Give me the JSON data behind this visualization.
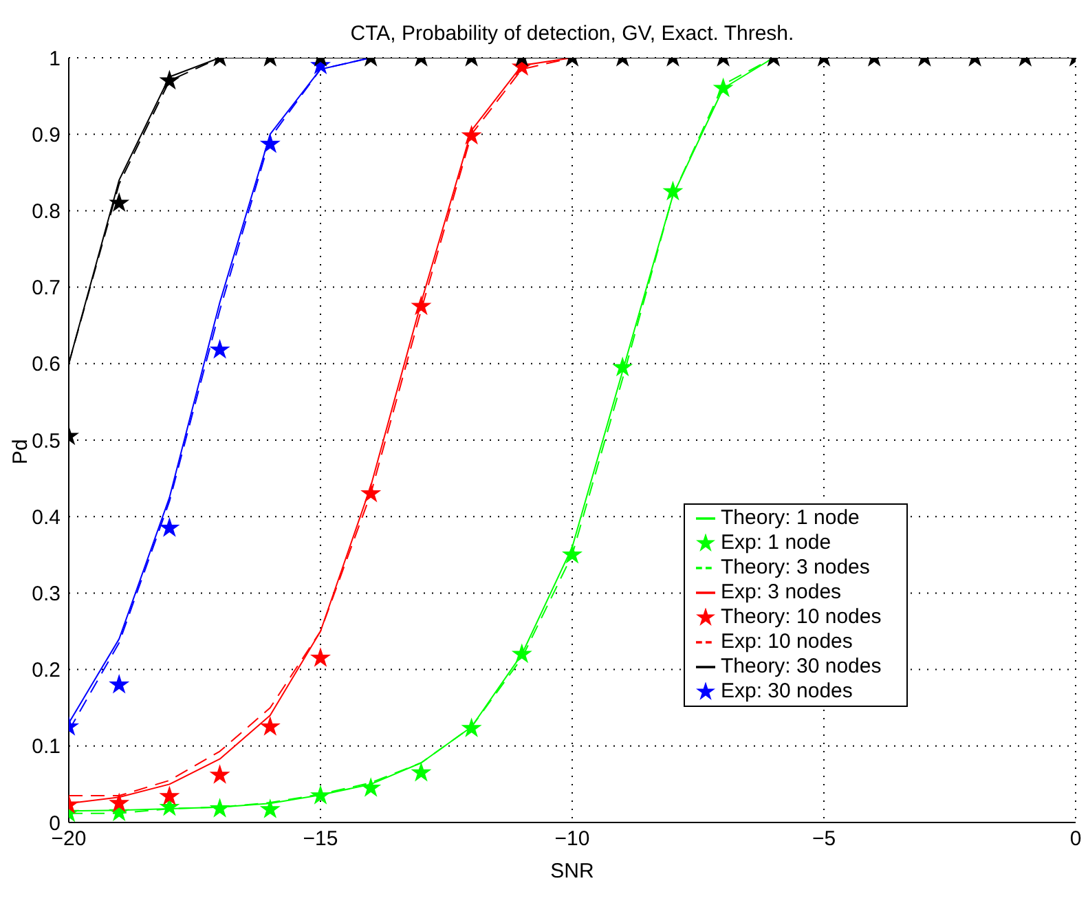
{
  "chart_data": {
    "type": "line",
    "title": "CTA, Probability of detection, GV, Exact. Thresh.",
    "xlabel": "SNR",
    "ylabel": "Pd",
    "x": [
      -20,
      -19,
      -18,
      -17,
      -16,
      -15,
      -14,
      -13,
      -12,
      -11,
      -10,
      -9,
      -8,
      -7,
      -6,
      -5,
      -4,
      -3,
      -2,
      -1,
      0
    ],
    "xlim": [
      -20,
      0
    ],
    "xticks": [
      {
        "value": -20,
        "label": "−20"
      },
      {
        "value": -15,
        "label": "−15"
      },
      {
        "value": -10,
        "label": "−10"
      },
      {
        "value": -5,
        "label": "−5"
      },
      0
    ],
    "ylim": [
      0,
      1
    ],
    "yticks": [
      0,
      0.1,
      0.2,
      0.3,
      0.4,
      0.5,
      0.6,
      0.7,
      0.8,
      0.9,
      1
    ],
    "grid": true,
    "legend": "bottom right",
    "series": [
      {
        "name": "Theory: 1 node",
        "line_style": "solid",
        "color": "#00ff00",
        "values": [
          0.015,
          0.016,
          0.018,
          0.02,
          0.025,
          0.036,
          0.05,
          0.078,
          0.125,
          0.22,
          0.36,
          0.59,
          0.82,
          0.96,
          1,
          null,
          null,
          null,
          null,
          null,
          null
        ]
      },
      {
        "name": "Exp: 1 node",
        "type": "scatter",
        "marker": "star",
        "color": "#00ff00",
        "values": [
          0.012,
          0.013,
          0.02,
          0.018,
          0.017,
          0.035,
          0.045,
          0.065,
          0.123,
          0.22,
          0.35,
          0.595,
          0.825,
          0.96,
          null,
          null,
          null,
          null,
          null,
          null,
          null
        ]
      },
      {
        "name": "Theory: 3 nodes",
        "line_style": "dashed",
        "color": "#00ff00",
        "values": [
          0.012,
          0.012,
          0.018,
          0.02,
          0.026,
          0.037,
          0.052,
          0.078,
          0.125,
          0.215,
          0.35,
          0.58,
          0.82,
          0.965,
          1,
          null,
          null,
          null,
          null,
          null,
          null
        ]
      },
      {
        "name": "Exp: 3 nodes",
        "line_style": "solid",
        "color": "#ff0000",
        "values": [
          0.025,
          0.033,
          0.05,
          0.083,
          0.14,
          0.25,
          0.44,
          0.68,
          0.905,
          0.99,
          1,
          null,
          null,
          null,
          null,
          null,
          null,
          null,
          null,
          null,
          null
        ]
      },
      {
        "name": "Theory: 10 nodes",
        "type": "scatter",
        "marker": "star",
        "color": "#ff0000",
        "values": [
          0.023,
          0.025,
          0.034,
          0.062,
          0.125,
          0.215,
          0.43,
          0.675,
          0.898,
          0.988,
          null,
          null,
          null,
          null,
          null,
          null,
          null,
          null,
          null,
          null,
          null
        ]
      },
      {
        "name": "Exp: 10 nodes",
        "line_style": "dashed",
        "color": "#ff0000",
        "values": [
          0.035,
          0.035,
          0.055,
          0.093,
          0.15,
          0.25,
          0.43,
          0.67,
          0.9,
          0.985,
          1,
          null,
          null,
          null,
          null,
          null,
          null,
          null,
          null,
          null,
          null
        ]
      },
      {
        "name": "Theory: 30 nodes",
        "line_style": "solid",
        "color": "#000000",
        "values": [
          0.6,
          0.84,
          0.975,
          1,
          1,
          1,
          1,
          1,
          1,
          1,
          1,
          1,
          1,
          1,
          1,
          1,
          1,
          1,
          1,
          1,
          1
        ]
      },
      {
        "name": "Exp: 30 nodes",
        "type": "scatter",
        "marker": "star",
        "color": "#0000ff",
        "values": [
          0.125,
          0.18,
          0.385,
          0.618,
          0.887,
          0.99,
          null,
          null,
          null,
          null,
          null,
          null,
          null,
          null,
          null,
          null,
          null,
          null,
          null,
          null,
          null
        ]
      },
      {
        "line_style": "solid",
        "color": "#0000ff",
        "values": [
          0.13,
          0.24,
          0.425,
          0.68,
          0.9,
          0.985,
          1,
          null,
          null,
          null,
          null,
          null,
          null,
          null,
          null,
          null,
          null,
          null,
          null,
          null,
          null
        ]
      },
      {
        "line_style": "dashed",
        "color": "#0000ff",
        "values": [
          0.12,
          0.235,
          0.42,
          0.67,
          0.895,
          0.985,
          1,
          null,
          null,
          null,
          null,
          null,
          null,
          null,
          null,
          null,
          null,
          null,
          null,
          null,
          null
        ]
      },
      {
        "line_style": "dashed",
        "color": "#000000",
        "values": [
          0.6,
          0.835,
          0.97,
          1,
          null,
          null,
          null,
          null,
          null,
          null,
          null,
          null,
          null,
          null,
          null,
          null,
          null,
          null,
          null,
          null,
          null
        ]
      },
      {
        "type": "scatter",
        "marker": "star",
        "color": "#000000",
        "values": [
          0.505,
          0.81,
          0.97,
          1,
          1,
          1,
          1,
          1,
          1,
          1,
          1,
          1,
          1,
          1,
          1,
          1,
          1,
          1,
          1,
          1,
          1
        ]
      }
    ]
  }
}
